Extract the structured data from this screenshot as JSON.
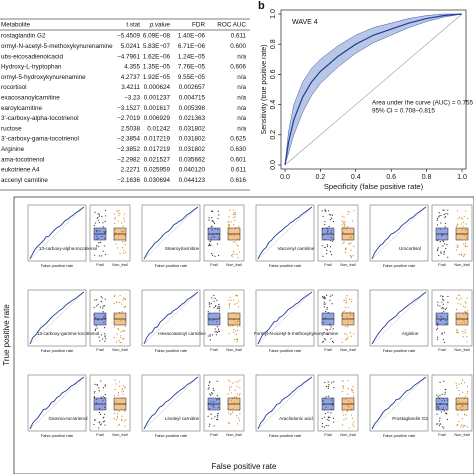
{
  "table": {
    "headers": [
      "Metabolite",
      "t.stat",
      "p.value",
      "FDR",
      "ROC AUC"
    ],
    "rows": [
      [
        "rostaglandin G2",
        "−5.4509",
        "6.09E−08",
        "1.40E−06",
        "0.611"
      ],
      [
        "ormyl-N-acetyl-5-methoxykynurenamine",
        "5.0241",
        "5.83E−07",
        "6.71E−06",
        "0.600"
      ],
      [
        "ubs-eicosadienoicacid",
        "−4.7961",
        "1.62E−06",
        "1.24E−05",
        "n/a"
      ],
      [
        "Hydroxy-L-tryptophan",
        "4.355",
        "1.35E−05",
        "7.76E−05",
        "0.606"
      ],
      [
        "ormyl-5-hydroxykynurenamine",
        "4.2737",
        "1.92E−05",
        "9.55E−05",
        "n/a"
      ],
      [
        "rocortisol",
        "3.4211",
        "0.000624",
        "0.002657",
        "n/a"
      ],
      [
        "exacosanoylcarnitine",
        "−3.23",
        "0.001237",
        "0.004715",
        "n/a"
      ],
      [
        "earoylcarnitine",
        "−3.1527",
        "0.001617",
        "0.005398",
        "n/a"
      ],
      [
        "3'-carboxy-alpha-tocotrienol",
        "−2.7019",
        "0.006929",
        "0.021363",
        "n/a"
      ],
      [
        "ructose",
        "2.5038",
        "0.01242",
        "0.031802",
        "n/a"
      ],
      [
        "3'-carboxy-gama-tocotrienol",
        "−2.3854",
        "0.017219",
        "0.031802",
        "0.625"
      ],
      [
        "Arginine",
        "−2.3852",
        "0.017219",
        "0.031802",
        "0.630"
      ],
      [
        "ama-tocotrienol",
        "−2.2982",
        "0.021527",
        "0.035662",
        "0.601"
      ],
      [
        "eukotriene A4",
        "2.2271",
        "0.025959",
        "0.040120",
        "0.611"
      ],
      [
        "accenyl carnitine",
        "−2.1636",
        "0.030694",
        "0.044123",
        "0.616"
      ]
    ]
  },
  "roc_panel": {
    "label": "b",
    "wave": "WAVE 4",
    "x_label": "Specificity (false positive rate)",
    "y_label": "Sensitivity (true positive rate)",
    "auc_text": "Area under the curve (AUC) = 0.755",
    "ci_text": "95% CI = 0.708–0.815",
    "xlim": [
      0,
      1
    ],
    "ylim": [
      0,
      1
    ],
    "xticks": [
      {
        "value": 0,
        "label": "0.0"
      },
      {
        "value": 0.2,
        "label": "0.2"
      },
      {
        "value": 0.4,
        "label": "0.4"
      },
      {
        "value": 0.6,
        "label": "0.6"
      },
      {
        "value": 0.8,
        "label": "0.8"
      },
      {
        "value": 1,
        "label": "1.0"
      }
    ],
    "yticks": [
      {
        "value": 0,
        "label": "0.0"
      },
      {
        "value": 0.2,
        "label": "0.2"
      },
      {
        "value": 0.4,
        "label": "0.4"
      },
      {
        "value": 0.6,
        "label": "0.6"
      },
      {
        "value": 0.8,
        "label": "0.8"
      },
      {
        "value": 1,
        "label": "1.0"
      }
    ],
    "x": [
      0,
      0.02,
      0.05,
      0.1,
      0.15,
      0.2,
      0.3,
      0.4,
      0.5,
      0.6,
      0.7,
      0.8,
      0.9,
      1
    ],
    "y": [
      0,
      0.15,
      0.3,
      0.45,
      0.55,
      0.62,
      0.72,
      0.8,
      0.86,
      0.9,
      0.94,
      0.97,
      0.99,
      1
    ],
    "ci_lower": [
      0,
      0.08,
      0.2,
      0.35,
      0.46,
      0.54,
      0.65,
      0.74,
      0.81,
      0.86,
      0.91,
      0.95,
      0.98,
      1
    ],
    "ci_upper": [
      0,
      0.22,
      0.4,
      0.55,
      0.64,
      0.7,
      0.79,
      0.86,
      0.91,
      0.94,
      0.97,
      0.99,
      1,
      1
    ]
  },
  "bottom_panel": {
    "y_label": "True positive rate",
    "x_label": "False positive rate",
    "mini_x_label": "False positive rate",
    "groups": [
      "Frail",
      "Non_frail"
    ],
    "plots": [
      {
        "label": "13-carboxy-alpha-tocotrienol"
      },
      {
        "label": "Stearoylcarnitine"
      },
      {
        "label": "Vaccenyl carnitine"
      },
      {
        "label": "Urocortisol"
      },
      {
        "label": "13-carboxy-gamma-tocotrienol"
      },
      {
        "label": "Hexacosanoyl carnitine"
      },
      {
        "label": "Formyl-N-acetyl-5-methoxykynurenamine"
      },
      {
        "label": "Arginine"
      },
      {
        "label": "Gamma-tocotrienol"
      },
      {
        "label": "Linoleyl carnitine"
      },
      {
        "label": "Arachidonic acid"
      },
      {
        "label": "Prostaglandin G2"
      }
    ]
  }
}
